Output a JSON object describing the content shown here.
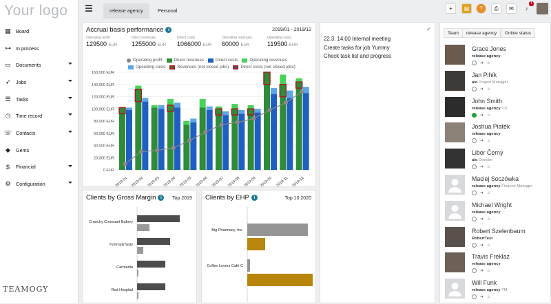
{
  "logo": "Your logo",
  "brand": "TEAMOGY",
  "nav": [
    {
      "label": "Board",
      "icon": "grid-icon",
      "chev": false
    },
    {
      "label": "In process",
      "icon": "flow-icon",
      "chev": false
    },
    {
      "label": "Documents",
      "icon": "folder-icon",
      "chev": true
    },
    {
      "label": "Jobs",
      "icon": "rocket-icon",
      "chev": true
    },
    {
      "label": "Tasks",
      "icon": "tasks-icon",
      "chev": true
    },
    {
      "label": "Time record",
      "icon": "clock-icon",
      "chev": true
    },
    {
      "label": "Contacts",
      "icon": "contacts-icon",
      "chev": true
    },
    {
      "label": "Gems",
      "icon": "gem-icon",
      "chev": false
    },
    {
      "label": "Financial",
      "icon": "dollar-icon",
      "chev": true
    },
    {
      "label": "Configuration",
      "icon": "gear-icon",
      "chev": true
    }
  ],
  "tabs": [
    "release agency",
    "Personal"
  ],
  "notif_count": "1",
  "accrual": {
    "title": "Accrual basis performance",
    "period": "2019/01 - 2019/12",
    "stats": [
      {
        "label": "Operating profit",
        "value": "129500",
        "unit": "EUR"
      },
      {
        "label": "Direct revenues",
        "value": "1255000",
        "unit": "EUR"
      },
      {
        "label": "Direct costs",
        "value": "1066000",
        "unit": "EUR"
      },
      {
        "label": "Operating revenues",
        "value": "60000",
        "unit": "EUR"
      },
      {
        "label": "Operating costs",
        "value": "119500",
        "unit": "EUR"
      }
    ]
  },
  "gross_margin": {
    "title": "Clients by Gross Margin",
    "filter": "Top",
    "year": "2019"
  },
  "ehp": {
    "title": "Clients by EHP",
    "filter": "Top 10 2020"
  },
  "notes": {
    "lines": [
      "22.3. 14:00 Internal meeting",
      "Create tasks for job Yummy",
      "Check task list and progress"
    ]
  },
  "team": {
    "breadcrumb": [
      "Team",
      "release agency",
      "Online status"
    ],
    "members": [
      {
        "name": "Grace Jones",
        "agency": "release agency",
        "role": "",
        "photo": true,
        "online": false
      },
      {
        "name": "Jan Pihík",
        "agency": "aio",
        "role": "Project Manager",
        "photo": true,
        "online": false
      },
      {
        "name": "John Smith",
        "agency": "release agency",
        "role": "CD",
        "photo": true,
        "online": true
      },
      {
        "name": "Joshua Piatek",
        "agency": "release agency",
        "role": "",
        "photo": true,
        "online": false
      },
      {
        "name": "Libor Černý",
        "agency": "aio",
        "role": "Director",
        "photo": true,
        "online": false
      },
      {
        "name": "Maciej Soczówka",
        "agency": "release agency",
        "role": "Finance Manager",
        "photo": false,
        "online": false
      },
      {
        "name": "Michael Wright",
        "agency": "release agency",
        "role": "",
        "photo": false,
        "online": false
      },
      {
        "name": "Robert Szelenbaum",
        "agency": "RobertTest",
        "role": "",
        "photo": true,
        "online": false
      },
      {
        "name": "Travis Freklaz",
        "agency": "release agency",
        "role": "",
        "photo": true,
        "online": false
      },
      {
        "name": "Will Funk",
        "agency": "release agency",
        "role": "TM",
        "photo": false,
        "online": false
      }
    ]
  },
  "chart_data": [
    {
      "type": "bar",
      "title": "Accrual basis performance",
      "categories": [
        "2019-01",
        "2019-02",
        "2019-03",
        "2019-04",
        "2019-05",
        "2019-06",
        "2019-07",
        "2019-08",
        "2019-09",
        "2019-10",
        "2019-11",
        "2019-12"
      ],
      "ylim": [
        0,
        160000
      ],
      "yticks": [
        "0 EUR",
        "20,000 EUR",
        "40,000 EUR",
        "60,000 EUR",
        "80,000 EUR",
        "100,000 EUR",
        "120,000 EUR",
        "140,000 EUR",
        "160,000 EUR"
      ],
      "legend_position": "top",
      "colors": {
        "direct_revenues": "#2e8b3a",
        "direct_costs": "#1f5fc2",
        "operating_revenues": "#48d357",
        "operating_costs": "#5aa6e6",
        "profit_line": "#8a8a8a",
        "rev_open": "#a51d1d"
      },
      "series": [
        {
          "name": "Operating profit",
          "values": [
            10000,
            30000,
            32000,
            36000,
            48000,
            62000,
            74000,
            78000,
            84000,
            98000,
            110000,
            128000
          ]
        },
        {
          "name": "Direct revenues",
          "values": [
            102000,
            132000,
            102000,
            106000,
            74000,
            102000,
            100000,
            100000,
            100000,
            160000,
            140000,
            144000
          ]
        },
        {
          "name": "Direct costs",
          "values": [
            98000,
            112000,
            100000,
            102000,
            78000,
            98000,
            90000,
            92000,
            94000,
            124000,
            118000,
            126000
          ]
        },
        {
          "name": "Operating revenues",
          "values": [
            0,
            6000,
            4000,
            10000,
            6000,
            14000,
            4000,
            8000,
            6000,
            0,
            16000,
            6000
          ]
        },
        {
          "name": "Operating costs",
          "values": [
            4000,
            6000,
            6000,
            8000,
            6000,
            6000,
            6000,
            6000,
            6000,
            10000,
            12000,
            10000
          ]
        },
        {
          "name": "Revenues (not closed jobs)",
          "values": [
            10000,
            20000,
            0,
            10000,
            0,
            0,
            10000,
            10000,
            10000,
            20000,
            20000,
            10000
          ]
        },
        {
          "name": "Direct costs (not closed jobs)",
          "values": [
            0,
            0,
            0,
            0,
            0,
            0,
            0,
            0,
            0,
            0,
            0,
            0
          ]
        }
      ]
    },
    {
      "type": "bar",
      "title": "Clients by Gross Margin",
      "categories": [
        "Crunchy Croissant Bakery",
        "Yummy&Tasty",
        "Carmedia",
        "Red Hospital"
      ],
      "series": [
        {
          "name": "",
          "values": [
            62,
            48,
            41,
            41
          ]
        },
        {
          "name": "",
          "values": [
            18,
            9,
            2,
            2
          ]
        }
      ]
    },
    {
      "type": "bar",
      "title": "Clients by EHP",
      "categories": [
        "Big Pharmacy, Inc.",
        "Coffee Lovers Café C"
      ],
      "series": [
        {
          "name": "",
          "values": [
            88,
            4
          ]
        },
        {
          "name": "",
          "values": [
            26,
            95
          ]
        }
      ]
    }
  ]
}
